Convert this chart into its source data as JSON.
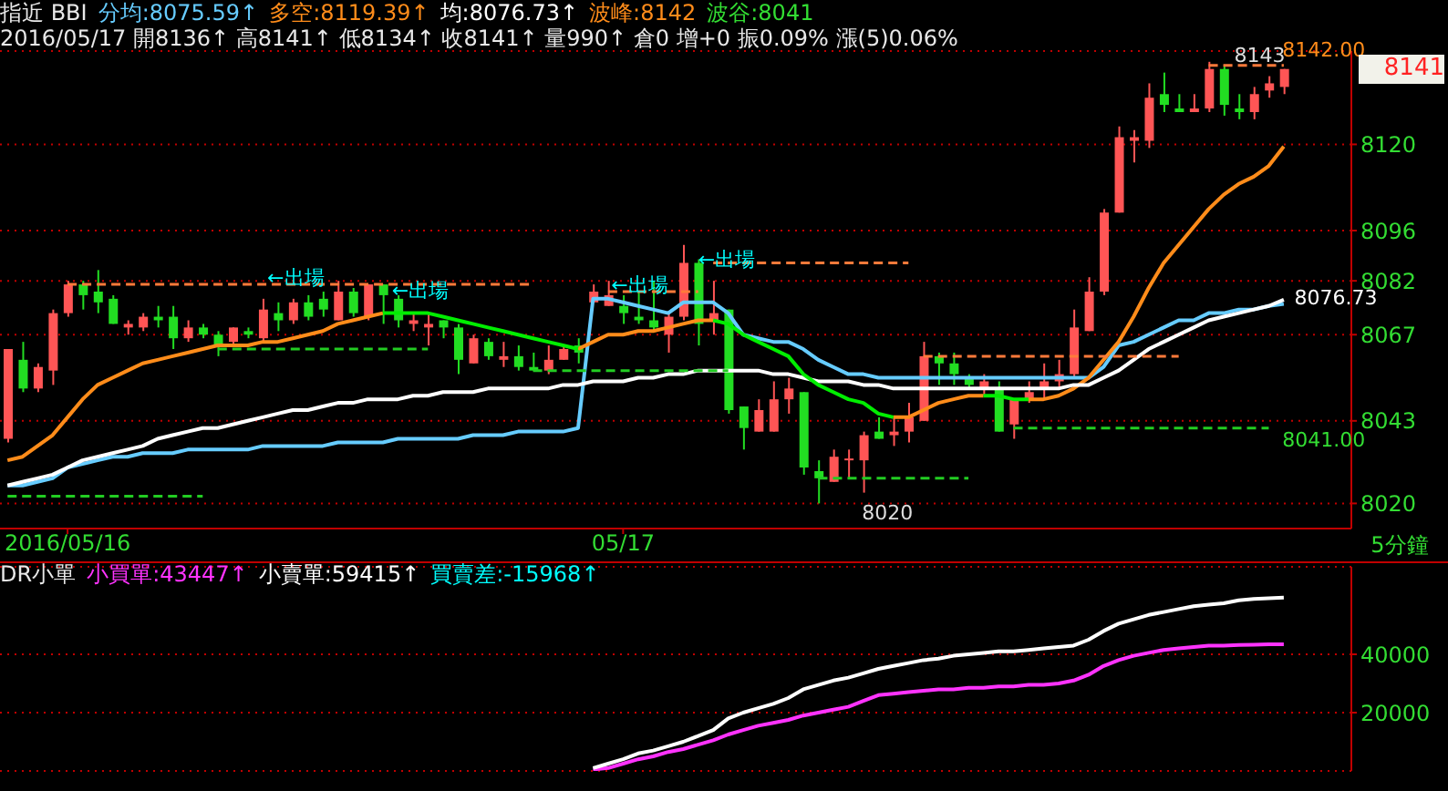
{
  "chart_data": [
    {
      "type": "candlestick",
      "title": "指近 BBI",
      "subtitle": "2016/05/17 開8136↑ 高8141↑ 低8134↑ 收8141↑ 量990↑ 倉0 增+0 振0.09% 漲(5)0.06%",
      "xlabel": "5分鐘",
      "categories": [
        null,
        null,
        null,
        null,
        "2016/05/16",
        null,
        null,
        null,
        null,
        null,
        null,
        null,
        null,
        null,
        null,
        null,
        null,
        null,
        null,
        null,
        null,
        null,
        null,
        null,
        null,
        null,
        null,
        null,
        null,
        null,
        null,
        null,
        null,
        null,
        null,
        null,
        null,
        null,
        null,
        null,
        null,
        "05/17",
        null,
        null,
        null,
        null,
        null,
        null,
        null,
        null,
        null,
        null,
        null,
        null,
        null,
        null,
        null,
        null,
        null,
        null,
        null,
        null,
        null,
        null,
        null,
        null,
        null,
        null,
        null,
        null,
        null,
        null,
        null,
        null,
        null,
        null,
        null,
        null,
        null,
        null,
        null,
        null,
        null,
        null,
        null,
        null
      ],
      "ohlc": [
        [
          8038,
          8063,
          8037,
          8063
        ],
        [
          8060,
          8065,
          8051,
          8052
        ],
        [
          8052,
          8059,
          8051,
          8058
        ],
        [
          8057,
          8074,
          8053,
          8073
        ],
        [
          8073,
          8082,
          8072,
          8081
        ],
        [
          8081,
          8082,
          8074,
          8078
        ],
        [
          8079,
          8085,
          8073,
          8076
        ],
        [
          8077,
          8078,
          8070,
          8070
        ],
        [
          8069,
          8071,
          8067,
          8070
        ],
        [
          8069,
          8073,
          8068,
          8072
        ],
        [
          8072,
          8075,
          8069,
          8071
        ],
        [
          8072,
          8075,
          8063,
          8066
        ],
        [
          8066,
          8071,
          8065,
          8069
        ],
        [
          8069,
          8070,
          8066,
          8067
        ],
        [
          8067,
          8068,
          8061,
          8064
        ],
        [
          8065,
          8069,
          8064,
          8069
        ],
        [
          8068,
          8069,
          8066,
          8067
        ],
        [
          8066,
          8077,
          8065,
          8074
        ],
        [
          8073,
          8076,
          8068,
          8071
        ],
        [
          8071,
          8077,
          8070,
          8076
        ],
        [
          8076,
          8078,
          8071,
          8072
        ],
        [
          8077,
          8079,
          8072,
          8074
        ],
        [
          8071,
          8082,
          8071,
          8079
        ],
        [
          8079,
          8080,
          8072,
          8073
        ],
        [
          8072,
          8081,
          8071,
          8081
        ],
        [
          8081,
          8081,
          8070,
          8078
        ],
        [
          8077,
          8078,
          8069,
          8071
        ],
        [
          8070,
          8073,
          8068,
          8071
        ],
        [
          8069,
          8073,
          8064,
          8070
        ],
        [
          8071,
          8071,
          8066,
          8069
        ],
        [
          8069,
          8070,
          8056,
          8060
        ],
        [
          8059,
          8067,
          8059,
          8066
        ],
        [
          8065,
          8066,
          8060,
          8061
        ],
        [
          8060,
          8065,
          8058,
          8061
        ],
        [
          8061,
          8064,
          8057,
          8058
        ],
        [
          8058,
          8062,
          8057,
          8057
        ],
        [
          8057,
          8064,
          8056,
          8060
        ],
        [
          8060,
          8064,
          8060,
          8063
        ],
        [
          8064,
          8066,
          8059,
          8062
        ],
        [
          8076,
          8081,
          8076,
          8079
        ],
        [
          8075,
          8082,
          8075,
          8078
        ],
        [
          8075,
          8078,
          8070,
          8073
        ],
        [
          8072,
          8079,
          8070,
          8071
        ],
        [
          8071,
          8082,
          8068,
          8069
        ],
        [
          8067,
          8073,
          8062,
          8072
        ],
        [
          8072,
          8092,
          8071,
          8087
        ],
        [
          8087,
          8088,
          8064,
          8070
        ],
        [
          8071,
          8082,
          8067,
          8073
        ],
        [
          8074,
          8074,
          8045,
          8046
        ],
        [
          8047,
          8047,
          8035,
          8041
        ],
        [
          8040,
          8049,
          8040,
          8046
        ],
        [
          8040,
          8054,
          8040,
          8049
        ],
        [
          8049,
          8055,
          8045,
          8052
        ],
        [
          8051,
          8051,
          8028,
          8030
        ],
        [
          8029,
          8032,
          8020,
          8027
        ],
        [
          8026,
          8035,
          8026,
          8033
        ],
        [
          8032,
          8035,
          8027,
          8032
        ],
        [
          8032,
          8040,
          8023,
          8039
        ],
        [
          8040,
          8044,
          8038,
          8038
        ],
        [
          8039,
          8044,
          8036,
          8040
        ],
        [
          8040,
          8048,
          8037,
          8044
        ],
        [
          8043,
          8065,
          8043,
          8061
        ],
        [
          8061,
          8062,
          8053,
          8059
        ],
        [
          8059,
          8062,
          8053,
          8056
        ],
        [
          8055,
          8056,
          8052,
          8053
        ],
        [
          8052,
          8056,
          8050,
          8054
        ],
        [
          8052,
          8054,
          8040,
          8040
        ],
        [
          8042,
          8049,
          8038,
          8049
        ],
        [
          8049,
          8054,
          8048,
          8051
        ],
        [
          8052,
          8059,
          8049,
          8054
        ],
        [
          8054,
          8060,
          8052,
          8056
        ],
        [
          8056,
          8074,
          8055,
          8069
        ],
        [
          8068,
          8083,
          8068,
          8079
        ],
        [
          8079,
          8102,
          8078,
          8101
        ],
        [
          8101,
          8125,
          8101,
          8122
        ],
        [
          8121,
          8124,
          8115,
          8122
        ],
        [
          8121,
          8137,
          8119,
          8133
        ],
        [
          8134,
          8140,
          8129,
          8131
        ],
        [
          8130,
          8134,
          8129,
          8129
        ],
        [
          8129,
          8134,
          8129,
          8130
        ],
        [
          8130,
          8143,
          8129,
          8141
        ],
        [
          8141,
          8142,
          8128,
          8131
        ],
        [
          8130,
          8134,
          8127,
          8129
        ],
        [
          8129,
          8136,
          8127,
          8134
        ],
        [
          8135,
          8139,
          8133,
          8137
        ],
        [
          8136,
          8141,
          8134,
          8141
        ]
      ],
      "colors": [
        "#ff5555",
        "#22dd22",
        "#ff5555",
        "#ff5555",
        "#ff5555",
        "#22dd22",
        "#22dd22",
        "#22dd22",
        "#ff5555",
        "#ff5555",
        "#22dd22",
        "#22dd22",
        "#ff5555",
        "#22dd22",
        "#22dd22",
        "#ff5555",
        "#22dd22",
        "#ff5555",
        "#22dd22",
        "#ff5555",
        "#22dd22",
        "#22dd22",
        "#ff5555",
        "#22dd22",
        "#ff5555",
        "#22dd22",
        "#22dd22",
        "#ff5555",
        "#ff5555",
        "#22dd22",
        "#22dd22",
        "#ff5555",
        "#22dd22",
        "#ff5555",
        "#22dd22",
        "#22dd22",
        "#ff5555",
        "#ff5555",
        "#22dd22",
        "#ff5555",
        "#ff5555",
        "#22dd22",
        "#22dd22",
        "#22dd22",
        "#ff5555",
        "#ff5555",
        "#22dd22",
        "#ff5555",
        "#22dd22",
        "#22dd22",
        "#ff5555",
        "#ff5555",
        "#ff5555",
        "#22dd22",
        "#22dd22",
        "#ff5555",
        "#ff5555",
        "#ff5555",
        "#22dd22",
        "#ff5555",
        "#ff5555",
        "#ff5555",
        "#22dd22",
        "#22dd22",
        "#22dd22",
        "#ff5555",
        "#22dd22",
        "#ff5555",
        "#ff5555",
        "#ff5555",
        "#ff5555",
        "#ff5555",
        "#ff5555",
        "#ff5555",
        "#ff5555",
        "#ff5555",
        "#ff5555",
        "#22dd22",
        "#22dd22",
        "#ff5555",
        "#ff5555",
        "#22dd22",
        "#22dd22",
        "#ff5555",
        "#ff5555",
        "#ff5555"
      ],
      "series": [
        {
          "name": "分均:8075.59↑",
          "type": "line",
          "color": "#66ccff",
          "values": [
            8025,
            8025,
            8026,
            8027,
            8030,
            8031,
            8032,
            8033,
            8033,
            8034,
            8034,
            8034,
            8035,
            8035,
            8035,
            8035,
            8035,
            8036,
            8036,
            8036,
            8036,
            8036,
            8037,
            8037,
            8037,
            8037,
            8038,
            8038,
            8038,
            8038,
            8038,
            8039,
            8039,
            8039,
            8040,
            8040,
            8040,
            8040,
            8041,
            8077,
            8077,
            8076,
            8075,
            8074,
            8073,
            8076,
            8076,
            8076,
            8073,
            8067,
            8066,
            8065,
            8065,
            8063,
            8060,
            8058,
            8056,
            8056,
            8055,
            8055,
            8055,
            8055,
            8055,
            8055,
            8055,
            8055,
            8055,
            8055,
            8055,
            8055,
            8055,
            8055,
            8055,
            8058,
            8064,
            8065,
            8067,
            8069,
            8071,
            8071,
            8073,
            8073,
            8074,
            8074,
            8075,
            8075.59
          ]
        },
        {
          "name": "多空:8119.39↑",
          "type": "line",
          "color": "#ff8c1a",
          "values": [
            8032,
            8033,
            8036,
            8039,
            8044,
            8049,
            8053,
            8055,
            8057,
            8059,
            8060,
            8061,
            8062,
            8063,
            8064,
            8064,
            8064,
            8065,
            8065,
            8066,
            8067,
            8068,
            8070,
            8071,
            8072,
            8073,
            null,
            null,
            null,
            null,
            null,
            null,
            null,
            null,
            null,
            null,
            null,
            null,
            8063,
            8065,
            8067,
            8067,
            8068,
            8068,
            8069,
            8070,
            8071,
            8071,
            null,
            null,
            null,
            null,
            null,
            null,
            null,
            null,
            null,
            null,
            null,
            8044,
            8044,
            8046,
            8048,
            8049,
            8050,
            8050,
            null,
            null,
            8049,
            8049,
            8050,
            8052,
            8055,
            8060,
            8065,
            8072,
            8080,
            8087,
            8092,
            8097,
            8102,
            8106,
            8109,
            8111,
            8114,
            8119.39
          ]
        },
        {
          "name": "均:8076.73↑",
          "type": "line",
          "color": "#ffffff",
          "values": [
            8025,
            8026,
            8027,
            8028,
            8030,
            8032,
            8033,
            8034,
            8035,
            8036,
            8038,
            8039,
            8040,
            8041,
            8041,
            8042,
            8043,
            8044,
            8045,
            8046,
            8046,
            8047,
            8048,
            8048,
            8049,
            8049,
            8049,
            8050,
            8050,
            8051,
            8051,
            8051,
            8052,
            8052,
            8052,
            8052,
            8052,
            8053,
            8053,
            8054,
            8054,
            8054,
            8055,
            8055,
            8056,
            8056,
            8057,
            8057,
            8057,
            8057,
            8057,
            8056,
            8056,
            8055,
            8054,
            8054,
            8054,
            8053,
            8053,
            8052,
            8052,
            8052,
            8052,
            8052,
            8052,
            8052,
            8052,
            8052,
            8052,
            8052,
            8052,
            8053,
            8053,
            8055,
            8057,
            8060,
            8063,
            8065,
            8067,
            8069,
            8071,
            8072,
            8073,
            8074,
            8075,
            8076.73
          ]
        },
        {
          "type": "line",
          "color": "#00ee00",
          "values": [
            null,
            null,
            null,
            null,
            null,
            null,
            null,
            null,
            null,
            null,
            null,
            null,
            null,
            null,
            null,
            null,
            null,
            null,
            null,
            null,
            null,
            null,
            null,
            null,
            null,
            8073,
            8073,
            8073,
            8073,
            8072,
            8071,
            8070,
            8069,
            8068,
            8067,
            8066,
            8065,
            8064,
            8063,
            null,
            null,
            null,
            null,
            null,
            null,
            null,
            null,
            8071,
            8070,
            8067,
            8065,
            8063,
            8061,
            8056,
            8053,
            8051,
            8049,
            8048,
            8045,
            8044,
            null,
            null,
            null,
            null,
            null,
            8050,
            8050,
            8049,
            8049,
            null,
            null,
            null,
            null,
            null,
            null,
            null,
            null,
            null,
            null,
            null,
            null,
            null,
            null,
            null,
            null,
            null
          ]
        },
        {
          "type": "line",
          "color": "#ff7a3a",
          "line_style": "dashed",
          "values": [
            null,
            null,
            null,
            null,
            8081,
            8081,
            8081,
            8081,
            8081,
            8081,
            8081,
            8081,
            8081,
            8081,
            8081,
            8081,
            8081,
            8081,
            8081,
            8081,
            8081,
            8081,
            8081,
            8081,
            8081,
            8081,
            8081,
            8081,
            8081,
            8081,
            8081,
            8081,
            8081,
            8081,
            8081,
            8081,
            null,
            null,
            null,
            null,
            null,
            null,
            null,
            null,
            null,
            null,
            null,
            null,
            null,
            null,
            null,
            null,
            null,
            null,
            null,
            null,
            null,
            null,
            null,
            null,
            null,
            null,
            null,
            null,
            null,
            null,
            null,
            null,
            null,
            null,
            null,
            null,
            null,
            null,
            null,
            null,
            null,
            null,
            null,
            null,
            null,
            null,
            null,
            null,
            null,
            null
          ]
        },
        {
          "type": "line",
          "color": "#ff7a3a",
          "line_style": "dashed",
          "values": [
            null,
            null,
            null,
            null,
            null,
            null,
            null,
            null,
            null,
            null,
            null,
            null,
            null,
            null,
            null,
            null,
            null,
            null,
            null,
            null,
            null,
            null,
            null,
            null,
            null,
            null,
            null,
            null,
            null,
            null,
            null,
            null,
            null,
            null,
            null,
            null,
            null,
            null,
            null,
            null,
            8079,
            8079,
            8079,
            8079,
            8079,
            8079,
            8079,
            null,
            null,
            null,
            null,
            null,
            null,
            null,
            null,
            null,
            null,
            null,
            null,
            null,
            null,
            null,
            null,
            null,
            null,
            null,
            null,
            null,
            null,
            null,
            null,
            null,
            null,
            null,
            null,
            null,
            null,
            null,
            null,
            null,
            null,
            null,
            null,
            null,
            null,
            null
          ]
        },
        {
          "type": "line",
          "color": "#ff7a3a",
          "line_style": "dashed",
          "values": [
            null,
            null,
            null,
            null,
            null,
            null,
            null,
            null,
            null,
            null,
            null,
            null,
            null,
            null,
            null,
            null,
            null,
            null,
            null,
            null,
            null,
            null,
            null,
            null,
            null,
            null,
            null,
            null,
            null,
            null,
            null,
            null,
            null,
            null,
            null,
            null,
            null,
            null,
            null,
            null,
            null,
            null,
            null,
            null,
            null,
            null,
            null,
            8087,
            8087,
            8087,
            8087,
            8087,
            8087,
            8087,
            8087,
            8087,
            8087,
            8087,
            8087,
            8087,
            8087,
            null,
            null,
            null,
            null,
            null,
            null,
            null,
            null,
            null,
            null,
            null,
            null,
            null,
            null,
            null,
            null,
            null,
            null,
            null,
            null,
            null,
            null,
            null,
            null,
            null
          ]
        },
        {
          "type": "line",
          "color": "#ff7a3a",
          "line_style": "dashed",
          "values": [
            null,
            null,
            null,
            null,
            null,
            null,
            null,
            null,
            null,
            null,
            null,
            null,
            null,
            null,
            null,
            null,
            null,
            null,
            null,
            null,
            null,
            null,
            null,
            null,
            null,
            null,
            null,
            null,
            null,
            null,
            null,
            null,
            null,
            null,
            null,
            null,
            null,
            null,
            null,
            null,
            null,
            null,
            null,
            null,
            null,
            null,
            null,
            null,
            null,
            null,
            null,
            null,
            null,
            null,
            null,
            null,
            null,
            null,
            null,
            null,
            null,
            8061,
            8061,
            8061,
            8061,
            8061,
            8061,
            8061,
            8061,
            8061,
            8061,
            8061,
            8061,
            8061,
            8061,
            8061,
            8061,
            8061,
            8061,
            null,
            null,
            null,
            null,
            null,
            null,
            null
          ]
        },
        {
          "type": "line",
          "color": "#ff7a3a",
          "line_style": "dashed",
          "values": [
            null,
            null,
            null,
            null,
            null,
            null,
            null,
            null,
            null,
            null,
            null,
            null,
            null,
            null,
            null,
            null,
            null,
            null,
            null,
            null,
            null,
            null,
            null,
            null,
            null,
            null,
            null,
            null,
            null,
            null,
            null,
            null,
            null,
            null,
            null,
            null,
            null,
            null,
            null,
            null,
            null,
            null,
            null,
            null,
            null,
            null,
            null,
            null,
            null,
            null,
            null,
            null,
            null,
            null,
            null,
            null,
            null,
            null,
            null,
            null,
            null,
            null,
            null,
            null,
            null,
            null,
            null,
            null,
            null,
            null,
            null,
            null,
            null,
            null,
            null,
            null,
            null,
            null,
            null,
            null,
            8142,
            8142,
            8142,
            8142,
            8142,
            8142
          ]
        },
        {
          "type": "line",
          "color": "#22cc22",
          "line_style": "dashed",
          "values": [
            8022,
            8022,
            8022,
            8022,
            8022,
            8022,
            8022,
            8022,
            8022,
            8022,
            8022,
            8022,
            8022,
            8022,
            null,
            null,
            null,
            null,
            null,
            null,
            null,
            null,
            null,
            null,
            null,
            null,
            null,
            null,
            null,
            null,
            null,
            null,
            null,
            null,
            null,
            null,
            null,
            null,
            null,
            null,
            null,
            null,
            null,
            null,
            null,
            null,
            null,
            null,
            null,
            null,
            null,
            null,
            null,
            null,
            null,
            null,
            null,
            null,
            null,
            null,
            null,
            null,
            null,
            null,
            null,
            null,
            null,
            null,
            null,
            null,
            null,
            null,
            null,
            null,
            null,
            null,
            null,
            null,
            null,
            null,
            null,
            null,
            null,
            null,
            null,
            null
          ]
        },
        {
          "type": "line",
          "color": "#22cc22",
          "line_style": "dashed",
          "values": [
            null,
            null,
            null,
            null,
            null,
            null,
            null,
            null,
            null,
            null,
            null,
            null,
            null,
            null,
            8063,
            8063,
            8063,
            8063,
            8063,
            8063,
            8063,
            8063,
            8063,
            8063,
            8063,
            8063,
            8063,
            8063,
            8063,
            null,
            null,
            null,
            null,
            null,
            null,
            null,
            null,
            null,
            null,
            null,
            null,
            null,
            null,
            null,
            null,
            null,
            null,
            null,
            null,
            null,
            null,
            null,
            null,
            null,
            null,
            null,
            null,
            null,
            null,
            null,
            null,
            null,
            null,
            null,
            null,
            null,
            null,
            null,
            null,
            null,
            null,
            null,
            null,
            null,
            null,
            null,
            null,
            null,
            null,
            null,
            null,
            null,
            null,
            null,
            null,
            null
          ]
        },
        {
          "type": "line",
          "color": "#22cc22",
          "line_style": "dashed",
          "values": [
            null,
            null,
            null,
            null,
            null,
            null,
            null,
            null,
            null,
            null,
            null,
            null,
            null,
            null,
            null,
            null,
            null,
            null,
            null,
            null,
            null,
            null,
            null,
            null,
            null,
            null,
            null,
            null,
            null,
            null,
            null,
            null,
            null,
            null,
            null,
            8057,
            8057,
            8057,
            8057,
            8057,
            8057,
            8057,
            8057,
            8057,
            8057,
            8057,
            8057,
            8057,
            8057,
            null,
            null,
            null,
            null,
            null,
            null,
            null,
            null,
            null,
            null,
            null,
            null,
            null,
            null,
            null,
            null,
            null,
            null,
            null,
            null,
            null,
            null,
            null,
            null,
            null,
            null,
            null,
            null,
            null,
            null,
            null,
            null,
            null,
            null,
            null,
            null,
            null
          ]
        },
        {
          "type": "line",
          "color": "#22cc22",
          "line_style": "dashed",
          "values": [
            null,
            null,
            null,
            null,
            null,
            null,
            null,
            null,
            null,
            null,
            null,
            null,
            null,
            null,
            null,
            null,
            null,
            null,
            null,
            null,
            null,
            null,
            null,
            null,
            null,
            null,
            null,
            null,
            null,
            null,
            null,
            null,
            null,
            null,
            null,
            null,
            null,
            null,
            null,
            null,
            null,
            null,
            null,
            null,
            null,
            null,
            null,
            null,
            null,
            null,
            null,
            null,
            null,
            null,
            8027,
            8027,
            8027,
            8027,
            8027,
            8027,
            8027,
            8027,
            8027,
            8027,
            8027,
            null,
            null,
            null,
            null,
            null,
            null,
            null,
            null,
            null,
            null,
            null,
            null,
            null,
            null,
            null,
            null,
            null,
            null,
            null,
            null,
            null
          ]
        },
        {
          "type": "line",
          "color": "#22cc22",
          "line_style": "dashed",
          "values": [
            null,
            null,
            null,
            null,
            null,
            null,
            null,
            null,
            null,
            null,
            null,
            null,
            null,
            null,
            null,
            null,
            null,
            null,
            null,
            null,
            null,
            null,
            null,
            null,
            null,
            null,
            null,
            null,
            null,
            null,
            null,
            null,
            null,
            null,
            null,
            null,
            null,
            null,
            null,
            null,
            null,
            null,
            null,
            null,
            null,
            null,
            null,
            null,
            null,
            null,
            null,
            null,
            null,
            null,
            null,
            null,
            null,
            null,
            null,
            null,
            null,
            null,
            null,
            null,
            null,
            null,
            null,
            8041,
            8041,
            8041,
            8041,
            8041,
            8041,
            8041,
            8041,
            8041,
            8041,
            8041,
            8041,
            8041,
            8041,
            8041,
            8041,
            8041,
            8041,
            null
          ]
        }
      ],
      "ylim": [
        8013,
        8146
      ],
      "yticks": [
        8020,
        8043,
        8067,
        8082,
        8096,
        8120
      ],
      "grid": "y",
      "legend": "top left",
      "marker": "none",
      "annotations": [
        "波峰:8142",
        "波谷:8041",
        "←出場",
        "←出場",
        "←出場",
        "←出場",
        "8143",
        "8020",
        "8142.00",
        "8076.73",
        "8041.00",
        "8141"
      ]
    },
    {
      "type": "line",
      "title": "DR小單",
      "categories": [
        null,
        null,
        null,
        null,
        null,
        null,
        null,
        null,
        null,
        null,
        null,
        null,
        null,
        null,
        null,
        null,
        null,
        null,
        null,
        null,
        null,
        null,
        null,
        null,
        null,
        null,
        null,
        null,
        null,
        null,
        null,
        null,
        null,
        null,
        null,
        null,
        null,
        null,
        null,
        null,
        null,
        null,
        null,
        null,
        null,
        null,
        null,
        null,
        null,
        null,
        null,
        null,
        null,
        null,
        null,
        null,
        null,
        null,
        null,
        null,
        null,
        null,
        null,
        null,
        null,
        null,
        null,
        null,
        null,
        null,
        null,
        null,
        null,
        null,
        null,
        null,
        null,
        null,
        null,
        null,
        null,
        null,
        null,
        null,
        null,
        null
      ],
      "tick_labels": "y",
      "series": [
        {
          "name": "小買單:43447↑",
          "color": "#ff33ff",
          "values": [
            null,
            null,
            null,
            null,
            null,
            null,
            null,
            null,
            null,
            null,
            null,
            null,
            null,
            null,
            null,
            null,
            null,
            null,
            null,
            null,
            null,
            null,
            null,
            null,
            null,
            null,
            null,
            null,
            null,
            null,
            null,
            null,
            null,
            null,
            null,
            null,
            null,
            null,
            null,
            500,
            1000,
            2500,
            4000,
            5000,
            6500,
            7500,
            9000,
            10500,
            12500,
            14000,
            15500,
            16500,
            17500,
            19000,
            20000,
            21000,
            22000,
            24000,
            26000,
            26500,
            27000,
            27500,
            28000,
            28000,
            28500,
            28500,
            29000,
            29000,
            29500,
            29500,
            30000,
            31000,
            33000,
            36000,
            38000,
            39500,
            40500,
            41500,
            42000,
            42500,
            43000,
            43000,
            43200,
            43300,
            43400,
            43447
          ]
        },
        {
          "name": "小賣單:59415↑",
          "color": "#ffffff",
          "values": [
            null,
            null,
            null,
            null,
            null,
            null,
            null,
            null,
            null,
            null,
            null,
            null,
            null,
            null,
            null,
            null,
            null,
            null,
            null,
            null,
            null,
            null,
            null,
            null,
            null,
            null,
            null,
            null,
            null,
            null,
            null,
            null,
            null,
            null,
            null,
            null,
            null,
            null,
            null,
            1000,
            2500,
            4000,
            6000,
            7000,
            8500,
            10000,
            12000,
            14000,
            18000,
            20000,
            21500,
            23000,
            25000,
            28000,
            29500,
            31000,
            32000,
            33500,
            35000,
            36000,
            37000,
            38000,
            38500,
            39500,
            40000,
            40500,
            41000,
            41000,
            41500,
            42000,
            42500,
            43000,
            45000,
            48000,
            50500,
            52000,
            53500,
            54500,
            55500,
            56500,
            57000,
            57500,
            58500,
            59000,
            59200,
            59415
          ]
        }
      ],
      "ylim": [
        0,
        70000
      ],
      "yticks": [
        20000,
        40000
      ],
      "grid": "y",
      "legend": "top left",
      "marker": "none",
      "annotations": [
        "買賣差:-15968↑"
      ]
    }
  ]
}
